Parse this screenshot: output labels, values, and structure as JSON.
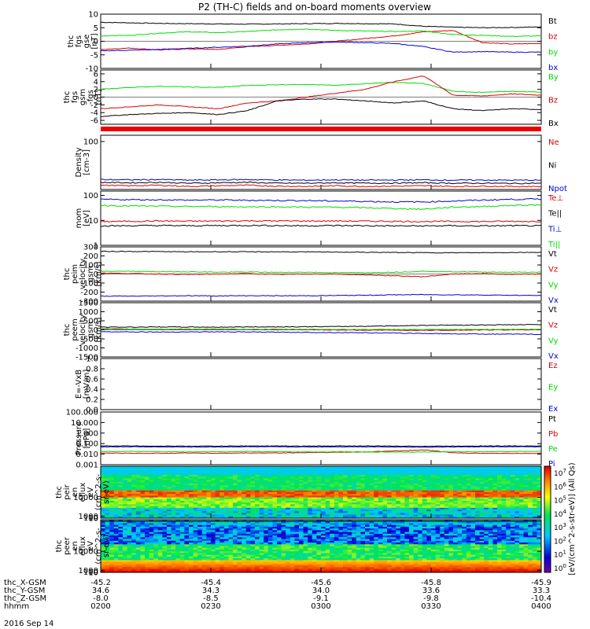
{
  "title": "P2 (TH-C) fields and on-board moments overview",
  "date_label": "2016 Sep 14",
  "colors": {
    "black": "#000000",
    "red": "#dd0000",
    "green": "#00dd00",
    "blue": "#0000dd"
  },
  "colorbar": {
    "label": "[eV/(cm^2-s-str-eV)] (All Qs)",
    "ticks": [
      "10^7",
      "10^6",
      "10^5",
      "10^4",
      "10^3",
      "10^2",
      "10^1",
      "10^0"
    ],
    "palette": "rainbow"
  },
  "time_axis": {
    "row_labels": [
      "thc_X-GSM",
      "thc_Y-GSM",
      "thc_Z-GSM",
      "hhmm"
    ],
    "columns": [
      [
        "-45.2",
        "34.6",
        "-8.0",
        "0200"
      ],
      [
        "-45.4",
        "34.3",
        "-8.5",
        "0230"
      ],
      [
        "-45.6",
        "34.0",
        "-9.1",
        "0300"
      ],
      [
        "-45.8",
        "33.6",
        "-9.8",
        "0330"
      ],
      [
        "-45.9",
        "33.3",
        "-10.4",
        "0400"
      ]
    ]
  },
  "chart_data": [
    {
      "id": "fgs_gse",
      "type": "line",
      "ylabel": [
        "thc",
        "fgs",
        "gse",
        "[nT]"
      ],
      "ylim": [
        -10,
        10
      ],
      "yticks": [
        "10",
        "5",
        "0",
        "-5",
        "-10"
      ],
      "series": [
        {
          "name": "Bt",
          "color": "#000000",
          "values": [
            7,
            6.8,
            6.6,
            6.5,
            6.4,
            6.3,
            6.4,
            6.5,
            6.6,
            6.5,
            6.4,
            5.5,
            5.2,
            5.0,
            5.1,
            5.3
          ]
        },
        {
          "name": "bz",
          "color": "#dd0000",
          "values": [
            -3,
            -2.5,
            -3.2,
            -2.8,
            -3,
            -2,
            -1.5,
            -1,
            0,
            1,
            2,
            3.5,
            4,
            -0.5,
            -1,
            -0.8
          ]
        },
        {
          "name": "by",
          "color": "#00dd00",
          "values": [
            2,
            2.2,
            3,
            3.5,
            3.2,
            3.6,
            4.2,
            4.5,
            4.0,
            3.8,
            3.6,
            3.8,
            2.5,
            2.2,
            1.8,
            2.0
          ]
        },
        {
          "name": "bx",
          "color": "#0000dd",
          "values": [
            -3.5,
            -3.3,
            -3.0,
            -2.6,
            -2.2,
            -1.8,
            -1.0,
            -0.5,
            -0.3,
            -0.5,
            -0.8,
            -2,
            -4,
            -3.8,
            -4,
            -4
          ]
        }
      ]
    },
    {
      "id": "fgs_gsm",
      "type": "line",
      "ylabel": [
        "thc",
        "fgs",
        "gsm",
        "-fgs",
        "[nT]"
      ],
      "ylim": [
        -7,
        7
      ],
      "yticks": [
        "6",
        "4",
        "2",
        "0",
        "-2",
        "-4",
        "-6"
      ],
      "series": [
        {
          "name": "By",
          "color": "#00dd00",
          "values": [
            2,
            2.5,
            2.8,
            2.6,
            2.5,
            3,
            3.2,
            3.3,
            3.0,
            3.5,
            3.8,
            3.5,
            1.5,
            1.2,
            1.5,
            1.3
          ]
        },
        {
          "name": "Bz",
          "color": "#dd0000",
          "values": [
            -3,
            -2.5,
            -2,
            -2.5,
            -3,
            -1.5,
            -1,
            0,
            1,
            2,
            4,
            5.5,
            0.5,
            0.3,
            0.8,
            0.5
          ]
        },
        {
          "name": "Bx",
          "color": "#000000",
          "values": [
            -5,
            -4.5,
            -4.2,
            -4,
            -4.5,
            -3.5,
            -1,
            -0.5,
            -0.5,
            -1,
            -1.5,
            -1,
            -3,
            -3.5,
            -3,
            -3.2
          ]
        }
      ]
    },
    {
      "id": "density",
      "type": "line",
      "scale": "log",
      "ylabel": [
        "Density",
        "[cm-3]"
      ],
      "ylim": [
        0.5,
        200
      ],
      "yticks": [
        "100"
      ],
      "series": [
        {
          "name": "Ne",
          "color": "#dd0000",
          "values": [
            0.8,
            0.75,
            0.8,
            0.7,
            0.75,
            0.8,
            0.72,
            0.7,
            0.75,
            0.7,
            0.72,
            0.75,
            0.7,
            0.72,
            0.7,
            0.7
          ]
        },
        {
          "name": "Ni",
          "color": "#000000",
          "values": [
            1.1,
            1.05,
            1.1,
            1.0,
            1.05,
            1.1,
            1.0,
            1.0,
            1.05,
            1.0,
            1.02,
            1.05,
            1.0,
            1.0,
            0.98,
            1.0
          ]
        },
        {
          "name": "Npot",
          "color": "#0000dd",
          "values": [
            1.5,
            1.45,
            1.5,
            1.4,
            1.45,
            1.5,
            1.42,
            1.4,
            1.45,
            1.4,
            1.42,
            1.45,
            1.4,
            1.42,
            1.4,
            1.4
          ]
        }
      ]
    },
    {
      "id": "temperature",
      "type": "line",
      "scale": "log",
      "ylabel": [
        "mom",
        "[eV]"
      ],
      "ylim": [
        1,
        150
      ],
      "yticks": [
        "100",
        "10",
        "1"
      ],
      "series": [
        {
          "name": "Te⊥",
          "color": "#dd0000",
          "values": [
            9,
            9.2,
            9.5,
            9.3,
            9.4,
            9.6,
            9.5,
            9.4,
            9.5,
            9.3,
            9.2,
            9.0,
            9.1,
            9.0,
            9.2,
            9.1
          ]
        },
        {
          "name": "Te||",
          "color": "#000000",
          "values": [
            6,
            6.1,
            6.2,
            6.1,
            6.2,
            6.3,
            6.2,
            6.1,
            6.2,
            6.1,
            6.0,
            6.0,
            6.1,
            6.0,
            6.1,
            6.0
          ]
        },
        {
          "name": "Ti⊥",
          "color": "#0000dd",
          "values": [
            70,
            68,
            67,
            65,
            66,
            64,
            63,
            62,
            60,
            58,
            55,
            55,
            60,
            65,
            70,
            72
          ]
        },
        {
          "name": "Ti||",
          "color": "#00dd00",
          "values": [
            40,
            38,
            37,
            36,
            36,
            35,
            35,
            34,
            34,
            32,
            30,
            28,
            34,
            36,
            40,
            42
          ]
        }
      ]
    },
    {
      "id": "peim_velocity",
      "type": "line",
      "ylabel": [
        "thc",
        "peim",
        "velocity",
        "gsm",
        "[km/s]"
      ],
      "ylim": [
        -300,
        300
      ],
      "yticks": [
        "300",
        "200",
        "100",
        "0",
        "-100",
        "-200",
        "-300"
      ],
      "series": [
        {
          "name": "Vt",
          "color": "#000000",
          "values": [
            250,
            250,
            248,
            245,
            247,
            245,
            246,
            244,
            243,
            240,
            238,
            236,
            235,
            236,
            238,
            240
          ]
        },
        {
          "name": "Vz",
          "color": "#dd0000",
          "values": [
            10,
            5,
            0,
            -5,
            0,
            5,
            -5,
            0,
            0,
            -10,
            -20,
            -30,
            0,
            5,
            -5,
            0
          ]
        },
        {
          "name": "Vy",
          "color": "#00dd00",
          "values": [
            30,
            30,
            25,
            25,
            20,
            22,
            18,
            20,
            15,
            15,
            20,
            30,
            25,
            22,
            20,
            20
          ]
        },
        {
          "name": "Vx",
          "color": "#0000dd",
          "values": [
            -245,
            -245,
            -242,
            -240,
            -242,
            -240,
            -241,
            -240,
            -238,
            -235,
            -230,
            -228,
            -230,
            -232,
            -235,
            -238
          ]
        }
      ]
    },
    {
      "id": "peem_velocity",
      "type": "line",
      "ylabel": [
        "thc",
        "peem",
        "velocity",
        "gsm",
        "[km/s]"
      ],
      "ylim": [
        -1500,
        1500
      ],
      "yticks": [
        "1500",
        "1000",
        "500",
        "0",
        "-500",
        "-1000",
        "-1500"
      ],
      "series": [
        {
          "name": "Vt",
          "color": "#000000",
          "values": [
            150,
            150,
            160,
            155,
            150,
            160,
            165,
            170,
            180,
            200,
            220,
            250,
            260,
            270,
            280,
            290
          ]
        },
        {
          "name": "Vz",
          "color": "#dd0000",
          "values": [
            50,
            40,
            30,
            20,
            30,
            20,
            10,
            0,
            -10,
            -20,
            -20,
            -30,
            -20,
            -10,
            0,
            10
          ]
        },
        {
          "name": "Vy",
          "color": "#00dd00",
          "values": [
            60,
            50,
            40,
            45,
            40,
            35,
            30,
            30,
            25,
            20,
            20,
            15,
            20,
            25,
            30,
            30
          ]
        },
        {
          "name": "Vx",
          "color": "#0000dd",
          "values": [
            -100,
            -110,
            -120,
            -115,
            -110,
            -120,
            -130,
            -140,
            -150,
            -160,
            -180,
            -200,
            -220,
            -230,
            -240,
            -250
          ]
        }
      ]
    },
    {
      "id": "efield",
      "type": "line",
      "ylabel": [
        "E=-VxB",
        "[mV/m]"
      ],
      "ylim": [
        0,
        1
      ],
      "yticks": [
        "1.0",
        "0.8",
        "0.6",
        "0.4",
        "0.2",
        "0.0"
      ],
      "series": [
        {
          "name": "Ez",
          "color": "#dd0000",
          "values": []
        },
        {
          "name": "Ey",
          "color": "#00dd00",
          "values": []
        },
        {
          "name": "Ex",
          "color": "#0000dd",
          "values": []
        }
      ]
    },
    {
      "id": "pressure",
      "type": "line",
      "scale": "log",
      "ylabel": [
        "Pressure",
        "[nPa]"
      ],
      "ylim": [
        0.001,
        100
      ],
      "yticks": [
        "100.000",
        "10.000",
        "1.000",
        "0.100",
        "0.010",
        "0.001"
      ],
      "series": [
        {
          "name": "Pt",
          "color": "#000000",
          "values": [
            0.06,
            0.06,
            0.058,
            0.057,
            0.058,
            0.06,
            0.059,
            0.058,
            0.06,
            0.06,
            0.058,
            0.056,
            0.058,
            0.06,
            0.06,
            0.06
          ]
        },
        {
          "name": "Pb",
          "color": "#dd0000",
          "values": [
            0.013,
            0.012,
            0.012,
            0.013,
            0.012,
            0.013,
            0.013,
            0.014,
            0.015,
            0.016,
            0.02,
            0.025,
            0.013,
            0.012,
            0.012,
            0.012
          ]
        },
        {
          "name": "Pe",
          "color": "#00dd00",
          "values": [
            0.018,
            0.018,
            0.017,
            0.016,
            0.017,
            0.018,
            0.017,
            0.016,
            0.017,
            0.016,
            0.016,
            0.016,
            0.017,
            0.017,
            0.018,
            0.018
          ]
        },
        {
          "name": "Pi",
          "color": "#0000dd",
          "values": [
            0.05,
            0.05,
            0.048,
            0.047,
            0.048,
            0.05,
            0.049,
            0.048,
            0.05,
            0.05,
            0.048,
            0.046,
            0.048,
            0.05,
            0.05,
            0.05
          ]
        }
      ]
    },
    {
      "id": "peir_spec",
      "type": "heatmap",
      "ylabel": [
        "thc",
        "peir",
        "en",
        "eflux",
        "eV",
        "(cm^2-s-",
        "sr-eV)"
      ],
      "ylim": [
        5,
        25000
      ],
      "yticks": [
        "10000",
        "1000",
        "100",
        "10"
      ]
    },
    {
      "id": "peer_spec",
      "type": "heatmap",
      "ylabel": [
        "thc",
        "peer",
        "en",
        "eflux",
        "eV",
        "(cm^2-s-",
        "sr-eV)"
      ],
      "ylim": [
        5,
        25000
      ],
      "yticks": [
        "10000",
        "1000",
        "100",
        "10"
      ]
    }
  ]
}
